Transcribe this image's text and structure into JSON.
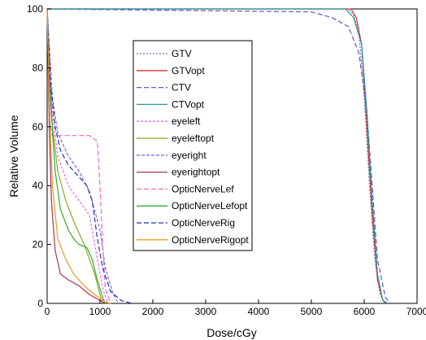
{
  "chart_data": {
    "type": "line",
    "title": "",
    "xlabel": "Dose/cGy",
    "ylabel": "Relative Volume",
    "xlim": [
      0,
      7000
    ],
    "ylim": [
      0,
      100
    ],
    "xticks": [
      "0",
      "1000",
      "2000",
      "3000",
      "4000",
      "5000",
      "6000",
      "7000"
    ],
    "yticks": [
      "0",
      "20",
      "40",
      "60",
      "80",
      "100"
    ],
    "grid": false,
    "legend_position": "center",
    "series": [
      {
        "name": "GTV",
        "color": "#7777aa",
        "dash": "2,2",
        "points": [
          [
            0,
            100
          ],
          [
            5700,
            100
          ],
          [
            5800,
            98
          ],
          [
            5900,
            92
          ],
          [
            6000,
            70
          ],
          [
            6100,
            40
          ],
          [
            6200,
            15
          ],
          [
            6300,
            3
          ],
          [
            6400,
            0
          ]
        ]
      },
      {
        "name": "GTVopt",
        "color": "#dd3333",
        "dash": "",
        "points": [
          [
            0,
            100
          ],
          [
            5750,
            100
          ],
          [
            5850,
            97
          ],
          [
            5950,
            88
          ],
          [
            6050,
            60
          ],
          [
            6150,
            30
          ],
          [
            6250,
            8
          ],
          [
            6350,
            1
          ],
          [
            6420,
            0
          ]
        ]
      },
      {
        "name": "CTV",
        "color": "#6655cc",
        "dash": "6,3",
        "points": [
          [
            0,
            100
          ],
          [
            5000,
            99
          ],
          [
            5400,
            97
          ],
          [
            5700,
            94
          ],
          [
            5900,
            85
          ],
          [
            6050,
            65
          ],
          [
            6150,
            40
          ],
          [
            6250,
            15
          ],
          [
            6400,
            2
          ],
          [
            6500,
            0
          ]
        ]
      },
      {
        "name": "CTVopt",
        "color": "#229999",
        "dash": "",
        "points": [
          [
            0,
            100
          ],
          [
            5650,
            100
          ],
          [
            5800,
            97
          ],
          [
            5950,
            88
          ],
          [
            6050,
            65
          ],
          [
            6150,
            35
          ],
          [
            6250,
            10
          ],
          [
            6350,
            1
          ],
          [
            6450,
            0
          ]
        ]
      },
      {
        "name": "eyeleft",
        "color": "#ee66ee",
        "dash": "3,2",
        "points": [
          [
            0,
            100
          ],
          [
            40,
            85
          ],
          [
            100,
            65
          ],
          [
            200,
            50
          ],
          [
            400,
            40
          ],
          [
            600,
            35
          ],
          [
            800,
            30
          ],
          [
            950,
            15
          ],
          [
            1050,
            5
          ],
          [
            1150,
            0
          ]
        ]
      },
      {
        "name": "eyeleftopt",
        "color": "#88aa22",
        "dash": "",
        "points": [
          [
            0,
            100
          ],
          [
            40,
            80
          ],
          [
            100,
            60
          ],
          [
            200,
            45
          ],
          [
            350,
            35
          ],
          [
            500,
            28
          ],
          [
            700,
            20
          ],
          [
            900,
            10
          ],
          [
            1000,
            3
          ],
          [
            1050,
            0
          ]
        ]
      },
      {
        "name": "eyeright",
        "color": "#8866dd",
        "dash": "4,2",
        "points": [
          [
            0,
            100
          ],
          [
            40,
            88
          ],
          [
            100,
            70
          ],
          [
            200,
            58
          ],
          [
            400,
            50
          ],
          [
            600,
            45
          ],
          [
            800,
            38
          ],
          [
            1000,
            25
          ],
          [
            1100,
            12
          ],
          [
            1250,
            3
          ],
          [
            1350,
            0
          ]
        ]
      },
      {
        "name": "eyerightopt",
        "color": "#aa3355",
        "dash": "",
        "points": [
          [
            0,
            100
          ],
          [
            40,
            60
          ],
          [
            80,
            35
          ],
          [
            150,
            18
          ],
          [
            250,
            10
          ],
          [
            400,
            8
          ],
          [
            600,
            6
          ],
          [
            800,
            3
          ],
          [
            1000,
            1
          ],
          [
            1100,
            0
          ]
        ]
      },
      {
        "name": "OpticNerveLef",
        "color": "#ee66cc",
        "dash": "6,3",
        "points": [
          [
            0,
            100
          ],
          [
            60,
            60
          ],
          [
            100,
            57
          ],
          [
            300,
            57
          ],
          [
            800,
            57
          ],
          [
            950,
            55
          ],
          [
            1000,
            40
          ],
          [
            1050,
            20
          ],
          [
            1100,
            5
          ],
          [
            1200,
            0
          ]
        ]
      },
      {
        "name": "OpticNerveLefopt",
        "color": "#33aa33",
        "dash": "",
        "points": [
          [
            0,
            100
          ],
          [
            60,
            70
          ],
          [
            150,
            45
          ],
          [
            250,
            32
          ],
          [
            400,
            25
          ],
          [
            500,
            22
          ],
          [
            600,
            20
          ],
          [
            750,
            19
          ],
          [
            850,
            15
          ],
          [
            950,
            8
          ],
          [
            1050,
            2
          ],
          [
            1100,
            0
          ]
        ]
      },
      {
        "name": "OpticNerveRig",
        "color": "#2233aa",
        "dash": "6,3",
        "points": [
          [
            0,
            100
          ],
          [
            60,
            75
          ],
          [
            150,
            60
          ],
          [
            250,
            52
          ],
          [
            400,
            47
          ],
          [
            600,
            43
          ],
          [
            750,
            40
          ],
          [
            850,
            35
          ],
          [
            950,
            22
          ],
          [
            1050,
            12
          ],
          [
            1200,
            4
          ],
          [
            1400,
            1
          ],
          [
            1600,
            0
          ]
        ]
      },
      {
        "name": "OpticNerveRigopt",
        "color": "#ee9922",
        "dash": "",
        "points": [
          [
            0,
            100
          ],
          [
            50,
            62
          ],
          [
            100,
            40
          ],
          [
            200,
            22
          ],
          [
            350,
            15
          ],
          [
            500,
            10
          ],
          [
            700,
            6
          ],
          [
            900,
            3
          ],
          [
            1100,
            0.5
          ],
          [
            1200,
            0
          ]
        ]
      }
    ]
  }
}
